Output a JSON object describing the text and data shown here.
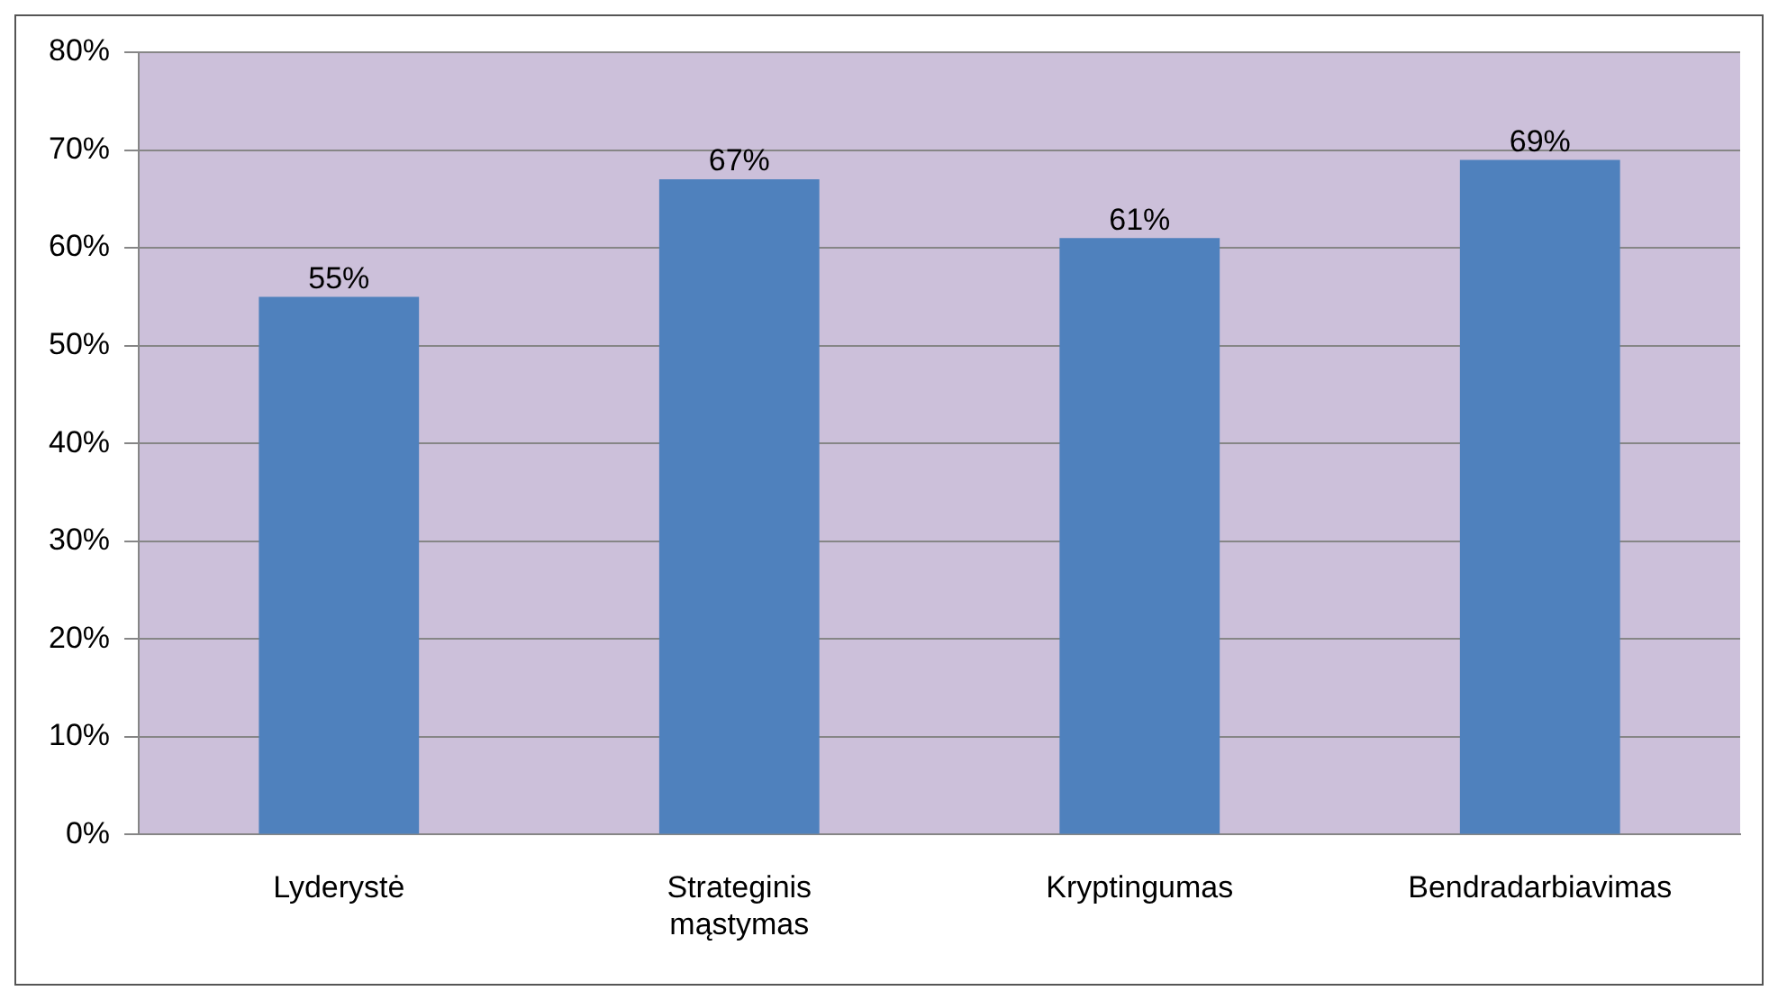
{
  "chart_data": {
    "type": "bar",
    "categories": [
      "Lyderystė",
      "Strateginis mąstymas",
      "Kryptingumas",
      "Bendradarbiavimas"
    ],
    "values": [
      55,
      67,
      61,
      69
    ],
    "color": "#4f81bd",
    "value_labels": [
      "55%",
      "67%",
      "61%",
      "69%"
    ],
    "ylim": [
      0,
      80
    ],
    "yticks": [
      {
        "value": 0,
        "label": "0%"
      },
      {
        "value": 10,
        "label": "10%"
      },
      {
        "value": 20,
        "label": "20%"
      },
      {
        "value": 30,
        "label": "30%"
      },
      {
        "value": 40,
        "label": "40%"
      },
      {
        "value": 50,
        "label": "50%"
      },
      {
        "value": 60,
        "label": "60%"
      },
      {
        "value": 70,
        "label": "70%"
      },
      {
        "value": 80,
        "label": "80%"
      }
    ],
    "grid": "y",
    "legend": false
  }
}
